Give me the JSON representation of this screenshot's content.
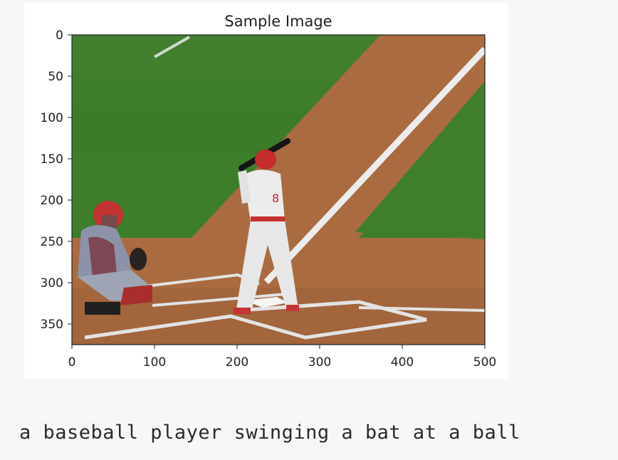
{
  "figure": {
    "title": "Sample Image",
    "x_ticks": [
      "0",
      "100",
      "200",
      "300",
      "400",
      "500"
    ],
    "y_ticks": [
      "0",
      "50",
      "100",
      "150",
      "200",
      "250",
      "300",
      "350"
    ],
    "image_description_icon": "baseball-photo-image"
  },
  "caption": {
    "text": "a baseball player swinging a bat at a ball"
  },
  "colors": {
    "grass": "#3f7f2c",
    "dirt": "#a86a3e",
    "chalk": "#eeeeee",
    "page_bg": "#f7f7f7"
  }
}
